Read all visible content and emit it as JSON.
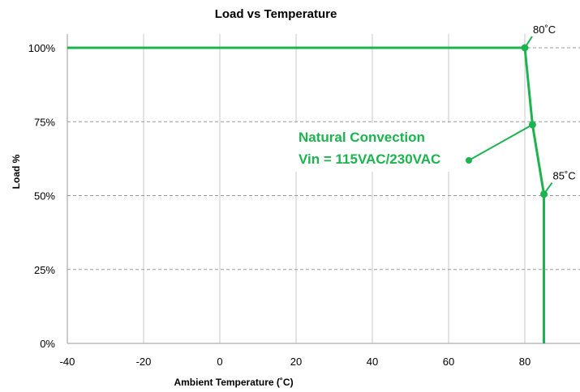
{
  "chart_data": {
    "type": "line",
    "title": "Load vs Temperature",
    "xlabel": "Ambient Temperature (˚C)",
    "ylabel": "Load %",
    "xlim": [
      -40,
      95
    ],
    "ylim": [
      0,
      100
    ],
    "x_ticks": [
      "-40",
      "-20",
      "0",
      "20",
      "40",
      "60",
      "80"
    ],
    "x_tick_values": [
      -40,
      -20,
      0,
      20,
      40,
      60,
      80
    ],
    "y_ticks": [
      "0%",
      "25%",
      "50%",
      "75%",
      "100%"
    ],
    "y_tick_values": [
      0,
      25,
      50,
      75,
      100
    ],
    "grid": {
      "vertical": "solid",
      "horizontal": "dashed"
    },
    "line_color": "#1db34f",
    "series": [
      {
        "x": [
          -40,
          80,
          82,
          85,
          85
        ],
        "y": [
          100,
          100,
          74,
          50.5,
          0
        ],
        "markers": [
          1,
          2,
          3
        ]
      }
    ],
    "annotations": {
      "label_80": "80˚C",
      "label_85": "85˚C",
      "callout_line1": "Natural Convection",
      "callout_line2": "Vin = 115VAC/230VAC"
    }
  }
}
